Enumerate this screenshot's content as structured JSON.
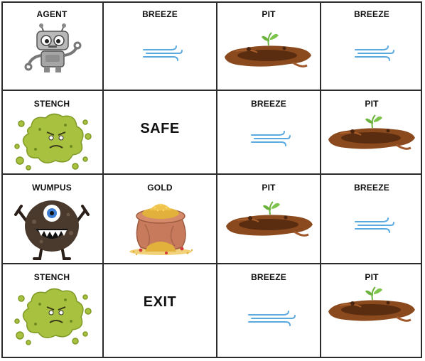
{
  "board": {
    "rows": [
      [
        {
          "type": "agent",
          "label": "AGENT"
        },
        {
          "type": "breeze",
          "label": "BREEZE"
        },
        {
          "type": "pit",
          "label": "PIT"
        },
        {
          "type": "breeze",
          "label": "BREEZE"
        }
      ],
      [
        {
          "type": "stench",
          "label": "STENCH"
        },
        {
          "type": "safe",
          "label": "SAFE"
        },
        {
          "type": "breeze",
          "label": "BREEZE"
        },
        {
          "type": "pit",
          "label": "PIT"
        }
      ],
      [
        {
          "type": "wumpus",
          "label": "WUMPUS"
        },
        {
          "type": "gold",
          "label": "GOLD"
        },
        {
          "type": "pit",
          "label": "PIT"
        },
        {
          "type": "breeze",
          "label": "BREEZE"
        }
      ],
      [
        {
          "type": "stench",
          "label": "STENCH"
        },
        {
          "type": "exit",
          "label": "EXIT"
        },
        {
          "type": "breeze",
          "label": "BREEZE"
        },
        {
          "type": "pit",
          "label": "PIT"
        }
      ]
    ]
  },
  "icons": {
    "agent": "robot-icon",
    "breeze": "wind-icon",
    "pit": "pit-icon",
    "stench": "stench-cloud-icon",
    "wumpus": "wumpus-monster-icon",
    "gold": "gold-sack-icon"
  },
  "colors": {
    "wind": "#5aa9df",
    "dirt": "#8a4a1e",
    "stench": "#a8c23f",
    "wumpus": "#4a3a2e",
    "gold": "#e2b13c",
    "sprout": "#6cb33e"
  }
}
